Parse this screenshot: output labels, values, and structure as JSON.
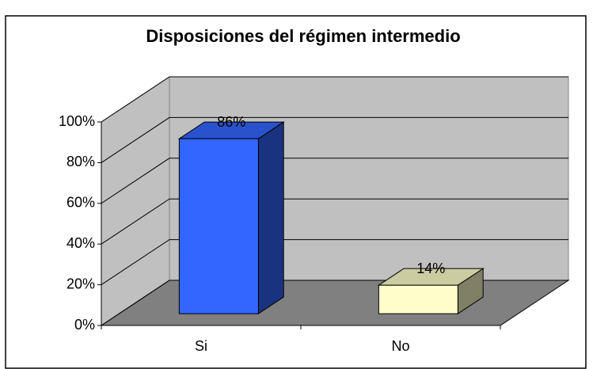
{
  "chart_data": {
    "type": "bar3d",
    "title": "Disposiciones del régimen intermedio",
    "categories": [
      "Si",
      "No"
    ],
    "values": [
      86,
      14
    ],
    "value_labels": [
      "86%",
      "14%"
    ],
    "colors": [
      "#3366ff",
      "#ffffcc"
    ],
    "ylim": [
      0,
      100
    ],
    "yticks": [
      {
        "value": 0,
        "label": "0%"
      },
      {
        "value": 20,
        "label": "20%"
      },
      {
        "value": 40,
        "label": "40%"
      },
      {
        "value": 60,
        "label": "60%"
      },
      {
        "value": 80,
        "label": "80%"
      },
      {
        "value": 100,
        "label": "100%"
      }
    ],
    "grid": true
  }
}
